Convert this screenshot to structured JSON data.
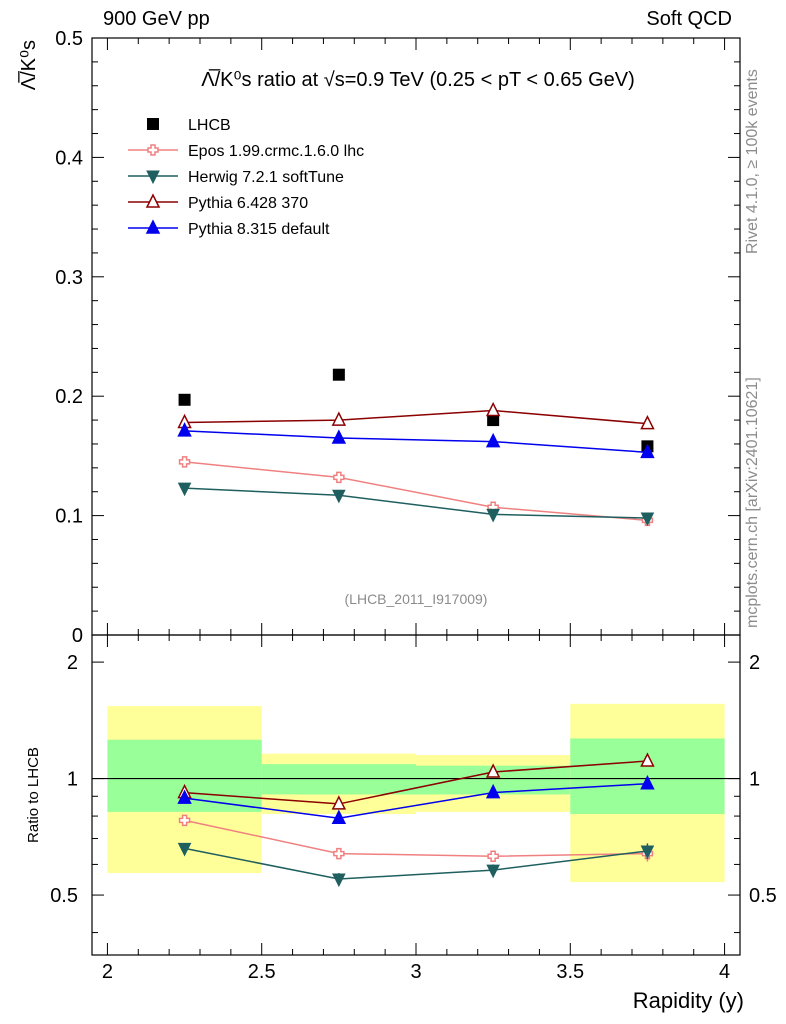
{
  "header": {
    "left": "900 GeV pp",
    "right": "Soft QCD"
  },
  "side_labels": {
    "rivet": "Rivet 4.1.0, ≥ 100k events",
    "mcplots": "mcplots.cern.ch [arXiv:2401.10621]"
  },
  "colors": {
    "LHCB": "#000000",
    "Epos": "#f08080",
    "Herwig": "#1f5f5f",
    "Pythia6": "#8b0000",
    "Pythia8": "#0000ee",
    "band_outer": "#ffff99",
    "band_inner": "#99ff99"
  },
  "chart_data": [
    {
      "type": "scatter",
      "panel": "main",
      "title": "Λ̅/K⁰s ratio at √s=0.9 TeV (0.25 < pT < 0.65 GeV)",
      "ylabel": "Λ̅/K⁰s",
      "watermark": "(LHCB_2011_I917009)",
      "xlim": [
        1.95,
        4.05
      ],
      "ylim": [
        0,
        0.5
      ],
      "yticks": [
        0.1,
        0.2,
        0.3,
        0.4,
        0.5
      ],
      "ytick_labels": [
        "0.1",
        "0.2",
        "0.3",
        "0.4",
        "0.5"
      ],
      "y_zero_label": "0",
      "x": [
        2.25,
        2.75,
        3.25,
        3.75
      ],
      "series": [
        {
          "name": "LHCB",
          "label": "LHCB",
          "marker": "square",
          "color_key": "LHCB",
          "line": false,
          "values": [
            0.197,
            0.218,
            0.18,
            0.158
          ],
          "errors": [
            0.0,
            0.0,
            0.0,
            0.0
          ]
        },
        {
          "name": "Epos",
          "label": "Epos 1.99.crmc.1.6.0 lhc",
          "marker": "cross",
          "color_key": "Epos",
          "line": true,
          "values": [
            0.145,
            0.132,
            0.107,
            0.096
          ],
          "errors": [
            0.003,
            0.003,
            0.003,
            0.003
          ]
        },
        {
          "name": "Herwig",
          "label": "Herwig 7.2.1 softTune",
          "marker": "tri-down",
          "color_key": "Herwig",
          "line": true,
          "values": [
            0.123,
            0.117,
            0.101,
            0.098
          ],
          "errors": [
            0.002,
            0.002,
            0.002,
            0.002
          ]
        },
        {
          "name": "Pythia6",
          "label": "Pythia 6.428 370",
          "marker": "tri-up-open",
          "color_key": "Pythia6",
          "line": true,
          "values": [
            0.178,
            0.18,
            0.188,
            0.177
          ],
          "errors": [
            0.003,
            0.004,
            0.004,
            0.004
          ]
        },
        {
          "name": "Pythia8",
          "label": "Pythia 8.315 default",
          "marker": "tri-up",
          "color_key": "Pythia8",
          "line": true,
          "values": [
            0.171,
            0.165,
            0.162,
            0.153
          ],
          "errors": [
            0.003,
            0.003,
            0.003,
            0.003
          ]
        }
      ]
    },
    {
      "type": "scatter",
      "panel": "ratio",
      "ylabel": "Ratio to LHCB",
      "xlabel": "Rapidity (y)",
      "xlim": [
        1.95,
        4.05
      ],
      "ylim": [
        0.35,
        2.35
      ],
      "xticks": [
        2,
        2.5,
        3,
        3.5,
        4
      ],
      "xtick_labels": [
        "2",
        "2.5",
        "3",
        "3.5",
        "4"
      ],
      "yticks": [
        0.5,
        1,
        2
      ],
      "ytick_labels": [
        "0.5",
        "1",
        "2"
      ],
      "reference_line": 1,
      "bands": [
        {
          "x_range": [
            2.0,
            2.5
          ],
          "outer": [
            0.57,
            1.54
          ],
          "inner": [
            0.82,
            1.26
          ]
        },
        {
          "x_range": [
            2.5,
            3.0
          ],
          "outer": [
            0.81,
            1.16
          ],
          "inner": [
            0.91,
            1.09
          ]
        },
        {
          "x_range": [
            3.0,
            3.5
          ],
          "outer": [
            0.82,
            1.15
          ],
          "inner": [
            0.91,
            1.08
          ]
        },
        {
          "x_range": [
            3.5,
            4.0
          ],
          "outer": [
            0.54,
            1.56
          ],
          "inner": [
            0.81,
            1.27
          ]
        }
      ],
      "x": [
        2.25,
        2.75,
        3.25,
        3.75
      ],
      "series": [
        {
          "name": "Epos",
          "marker": "cross",
          "color_key": "Epos",
          "values": [
            0.78,
            0.64,
            0.63,
            0.64
          ],
          "errors": [
            0.02,
            0.02,
            0.02,
            0.03
          ]
        },
        {
          "name": "Herwig",
          "marker": "tri-down",
          "color_key": "Herwig",
          "values": [
            0.66,
            0.55,
            0.58,
            0.65
          ],
          "errors": [
            0.02,
            0.02,
            0.02,
            0.03
          ]
        },
        {
          "name": "Pythia6",
          "marker": "tri-up-open",
          "color_key": "Pythia6",
          "values": [
            0.92,
            0.86,
            1.04,
            1.11
          ],
          "errors": [
            0.02,
            0.02,
            0.03,
            0.03
          ]
        },
        {
          "name": "Pythia8",
          "marker": "tri-up",
          "color_key": "Pythia8",
          "values": [
            0.89,
            0.79,
            0.92,
            0.97
          ],
          "errors": [
            0.02,
            0.02,
            0.02,
            0.03
          ]
        }
      ]
    }
  ]
}
